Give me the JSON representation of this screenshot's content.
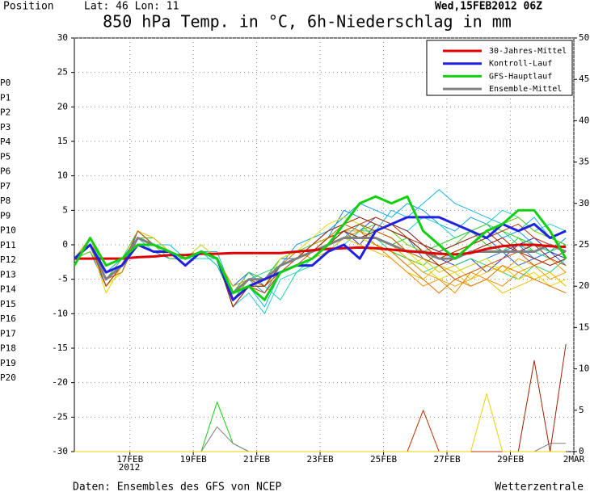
{
  "chart_data": {
    "type": "line",
    "title": "850 hPa Temp. in °C, 6h-Niederschlag in mm",
    "position_label": "Position",
    "location": "Lat: 46 Lon: 11",
    "run": "Wed,15FEB2012 06Z",
    "year_label": "2012",
    "source": "Daten: Ensembles des GFS von NCEP",
    "brand": "Wetterzentrale",
    "x": [
      0.25,
      0.75,
      1.25,
      1.75,
      2.25,
      2.75,
      3.25,
      3.75,
      4.25,
      4.75,
      5.25,
      5.75,
      6.25,
      6.75,
      7.25,
      7.75,
      8.25,
      8.75,
      9.25,
      9.75,
      10.25,
      10.75,
      11.25,
      11.75,
      12.25,
      12.75,
      13.25,
      13.75,
      14.25,
      14.75,
      15.25,
      15.75
    ],
    "xlim": [
      0.25,
      16
    ],
    "xticks": [
      {
        "value": 2,
        "label": "17FEB"
      },
      {
        "value": 4,
        "label": "19FEB"
      },
      {
        "value": 6,
        "label": "21FEB"
      },
      {
        "value": 8,
        "label": "23FEB"
      },
      {
        "value": 10,
        "label": "25FEB"
      },
      {
        "value": 12,
        "label": "27FEB"
      },
      {
        "value": 14,
        "label": "29FEB"
      },
      {
        "value": 16,
        "label": "2MAR"
      }
    ],
    "ylim": [
      -30,
      30
    ],
    "yticks": [
      -30,
      -25,
      -20,
      -15,
      -10,
      -5,
      0,
      5,
      10,
      15,
      20,
      25,
      30
    ],
    "y2lim": [
      0,
      50
    ],
    "y2ticks": [
      0,
      5,
      10,
      15,
      20,
      25,
      30,
      35,
      40,
      45,
      50
    ],
    "grid": true,
    "legend": "upper right",
    "members": [
      {
        "name": "P0",
        "color": "#3030d0",
        "values": [
          -2,
          0,
          -6,
          -3,
          1,
          0,
          -1,
          -2,
          -1,
          -2,
          -8,
          -6,
          -6,
          -3,
          -1,
          -1,
          1,
          2,
          0,
          3,
          2,
          1,
          -1,
          -2,
          -3,
          -2,
          -4,
          -2,
          0,
          1,
          -1,
          -2
        ]
      },
      {
        "name": "P1",
        "color": "#2060e0",
        "values": [
          -2,
          0,
          -5,
          -4,
          2,
          0,
          -1,
          -3,
          -1,
          -2,
          -6,
          -4,
          -5,
          -2,
          -2,
          0,
          2,
          3,
          2,
          4,
          3,
          2,
          0,
          -1,
          -2,
          0,
          1,
          -1,
          -3,
          -2,
          -1,
          -3
        ]
      },
      {
        "name": "P2",
        "color": "#2080e0",
        "values": [
          -2,
          -1,
          -6,
          -3,
          0,
          -1,
          -2,
          -2,
          -1,
          -3,
          -7,
          -4,
          -6,
          -3,
          -2,
          -1,
          1,
          5,
          4,
          3,
          2,
          1,
          -2,
          -3,
          -4,
          -3,
          -2,
          -1,
          0,
          -2,
          -3,
          -2
        ]
      },
      {
        "name": "P3",
        "color": "#10a0e0",
        "values": [
          -2,
          0,
          -4,
          -2,
          1,
          1,
          -1,
          -2,
          0,
          -2,
          -6,
          -5,
          -7,
          -3,
          0,
          1,
          2,
          4,
          6,
          5,
          4,
          6,
          5,
          3,
          2,
          4,
          3,
          1,
          2,
          0,
          -1,
          1
        ]
      },
      {
        "name": "P4",
        "color": "#10b8e0",
        "values": [
          -2,
          1,
          -5,
          -3,
          2,
          0,
          0,
          -2,
          -1,
          -1,
          -7,
          -6,
          -9,
          -4,
          -3,
          -2,
          -1,
          1,
          3,
          2,
          5,
          4,
          6,
          8,
          6,
          5,
          4,
          3,
          2,
          4,
          1,
          0
        ]
      },
      {
        "name": "P5",
        "color": "#20d0d0",
        "values": [
          -2,
          0,
          -5,
          -4,
          1,
          -1,
          -1,
          -2,
          -2,
          -2,
          -9,
          -7,
          -10,
          -5,
          -4,
          -2,
          0,
          2,
          1,
          2,
          3,
          2,
          4,
          3,
          1,
          2,
          3,
          5,
          4,
          2,
          3,
          2
        ]
      },
      {
        "name": "P6",
        "color": "#20d0a0",
        "values": [
          -2,
          0,
          -6,
          -3,
          0,
          0,
          -1,
          -3,
          -1,
          -3,
          -8,
          -5,
          -6,
          -8,
          -4,
          -3,
          -1,
          0,
          2,
          1,
          -1,
          -2,
          -4,
          -3,
          -2,
          0,
          1,
          2,
          0,
          -1,
          -2,
          -3
        ]
      },
      {
        "name": "P7",
        "color": "#20d070",
        "values": [
          -2,
          1,
          -4,
          -3,
          2,
          0,
          -1,
          -2,
          -1,
          -2,
          -6,
          -5,
          -4,
          -3,
          -2,
          0,
          1,
          3,
          2,
          2,
          1,
          -1,
          -2,
          -4,
          -3,
          -2,
          -3,
          -4,
          -5,
          -3,
          -4,
          -2
        ]
      },
      {
        "name": "P8",
        "color": "#30d030",
        "values": [
          -2,
          0,
          -5,
          -3,
          1,
          1,
          -1,
          -2,
          -1,
          -2,
          -7,
          -4,
          -5,
          -2,
          -1,
          0,
          1,
          2,
          3,
          1,
          0,
          1,
          -1,
          0,
          1,
          2,
          0,
          -1,
          1,
          0,
          -1,
          0
        ]
      },
      {
        "name": "P9",
        "color": "#40d020",
        "values": [
          -2,
          0,
          -5,
          -2,
          2,
          0,
          -2,
          -2,
          -1,
          -2,
          -7,
          -6,
          -6,
          -3,
          -2,
          -1,
          0,
          2,
          1,
          0,
          -1,
          -2,
          -3,
          -1,
          0,
          2,
          3,
          2,
          1,
          -1,
          0,
          -1
        ]
      },
      {
        "name": "P10",
        "color": "#60d000",
        "values": [
          -2,
          -1,
          -5,
          -3,
          1,
          0,
          -1,
          -2,
          -1,
          -2,
          -8,
          -5,
          -5,
          -3,
          -2,
          -1,
          0,
          1,
          2,
          3,
          2,
          0,
          -1,
          -2,
          -1,
          0,
          2,
          3,
          4,
          2,
          1,
          0
        ]
      },
      {
        "name": "P11",
        "color": "#e0e000",
        "values": [
          -2,
          0,
          -6,
          -4,
          1,
          0,
          -1,
          -2,
          0,
          -2,
          -7,
          -5,
          -6,
          -2,
          -1,
          1,
          3,
          4,
          3,
          2,
          1,
          -1,
          -3,
          -5,
          -4,
          -3,
          -2,
          -4,
          -3,
          -5,
          -4,
          -6
        ]
      },
      {
        "name": "P12",
        "color": "#f0d000",
        "values": [
          -2,
          0,
          -7,
          -3,
          1,
          0,
          -1,
          -2,
          -1,
          -2,
          -8,
          -6,
          -6,
          -3,
          -2,
          -1,
          0,
          2,
          1,
          0,
          -1,
          -3,
          -2,
          -4,
          -3,
          -5,
          -4,
          -3,
          -5,
          -4,
          -6,
          -5
        ]
      },
      {
        "name": "P13",
        "color": "#f0c000",
        "values": [
          -2,
          0,
          -5,
          -3,
          2,
          1,
          -1,
          -2,
          -1,
          -2,
          -7,
          -5,
          -6,
          -4,
          -3,
          -2,
          -1,
          1,
          0,
          -1,
          -2,
          -4,
          -5,
          -3,
          -4,
          -6,
          -5,
          -7,
          -6,
          -5,
          -4,
          -6
        ]
      },
      {
        "name": "P14",
        "color": "#f0a000",
        "values": [
          -2,
          1,
          -5,
          -3,
          1,
          0,
          -1,
          -2,
          -1,
          -2,
          -6,
          -5,
          -5,
          -3,
          -2,
          0,
          1,
          2,
          2,
          1,
          0,
          -2,
          -4,
          -5,
          -6,
          -5,
          -3,
          -4,
          -2,
          -3,
          -5,
          -4
        ]
      },
      {
        "name": "P15",
        "color": "#f09000",
        "values": [
          -2,
          0,
          -6,
          -3,
          1,
          0,
          -1,
          -2,
          -1,
          -2,
          -7,
          -5,
          -6,
          -3,
          -1,
          -2,
          0,
          1,
          2,
          0,
          -2,
          -4,
          -6,
          -5,
          -7,
          -4,
          -5,
          -6,
          -4,
          -3,
          -2,
          -4
        ]
      },
      {
        "name": "P16",
        "color": "#e07000",
        "values": [
          -2,
          0,
          -5,
          -4,
          1,
          0,
          -1,
          -3,
          -1,
          -2,
          -8,
          -6,
          -5,
          -3,
          -2,
          -1,
          1,
          3,
          2,
          0,
          -1,
          -3,
          -5,
          -7,
          -5,
          -6,
          -5,
          -3,
          -4,
          -5,
          -6,
          -7
        ]
      },
      {
        "name": "P17",
        "color": "#d05000",
        "values": [
          -2,
          0,
          -5,
          -3,
          2,
          0,
          -1,
          -2,
          -1,
          -2,
          -7,
          -5,
          -6,
          -4,
          -3,
          -1,
          0,
          2,
          3,
          2,
          1,
          -1,
          -2,
          -3,
          -5,
          -4,
          -3,
          -2,
          -1,
          -3,
          -2,
          -3
        ]
      },
      {
        "name": "P18",
        "color": "#c03000",
        "values": [
          -2,
          0,
          -6,
          -3,
          1,
          0,
          -1,
          -2,
          -1,
          -2,
          -9,
          -6,
          -7,
          -4,
          -2,
          -1,
          1,
          2,
          3,
          4,
          3,
          1,
          0,
          -2,
          -1,
          0,
          1,
          2,
          3,
          1,
          0,
          -1
        ]
      },
      {
        "name": "P19",
        "color": "#a02000",
        "values": [
          -2,
          0,
          -5,
          -3,
          1,
          0,
          -1,
          -2,
          -1,
          -2,
          -9,
          -6,
          -6,
          -3,
          -2,
          0,
          2,
          3,
          4,
          3,
          2,
          1,
          -1,
          -3,
          -2,
          -1,
          0,
          1,
          -1,
          -2,
          -3,
          -2
        ]
      },
      {
        "name": "P20",
        "color": "#902020",
        "values": [
          -2,
          0,
          -5,
          -3,
          1,
          0,
          -1,
          -2,
          -1,
          -2,
          -7,
          -5,
          -5,
          -3,
          -2,
          -1,
          0,
          2,
          1,
          2,
          3,
          2,
          0,
          -1,
          0,
          1,
          2,
          0,
          -1,
          0,
          -2,
          -1
        ]
      }
    ],
    "series": [
      {
        "name": "30-Jahres-Mittel",
        "color": "#e00000",
        "values": [
          -2,
          -2,
          -2,
          -2,
          -1.8,
          -1.7,
          -1.5,
          -1.5,
          -1.3,
          -1.3,
          -1.2,
          -1.2,
          -1.2,
          -1.2,
          -1,
          -0.8,
          -0.6,
          -0.5,
          -0.4,
          -0.5,
          -0.7,
          -0.9,
          -1.1,
          -1.3,
          -1.4,
          -1.2,
          -0.6,
          -0.2,
          0,
          0,
          -0.2,
          -0.3
        ]
      },
      {
        "name": "Kontroll-Lauf",
        "color": "#2020e0",
        "values": [
          -2,
          0,
          -4,
          -3,
          0,
          -1,
          -1,
          -3,
          -1,
          -2,
          -8,
          -6,
          -5,
          -4,
          -3,
          -3,
          -1,
          0,
          -2,
          2,
          3,
          4,
          4,
          4,
          3,
          2,
          1,
          3,
          2,
          3,
          1,
          2
        ]
      },
      {
        "name": "GFS-Hauptlauf",
        "color": "#10d010",
        "values": [
          -3,
          1,
          -3,
          -2,
          0,
          0,
          -1,
          -2,
          -1,
          -2,
          -7,
          -6,
          -8,
          -4,
          -3,
          -2,
          0,
          3,
          6,
          7,
          6,
          7,
          2,
          0,
          -2,
          0,
          2,
          3,
          5,
          5,
          2,
          -2
        ]
      },
      {
        "name": "Ensemble-Mittel",
        "color": "#808080",
        "values": [
          -2,
          0,
          -5,
          -3,
          1,
          0,
          -1,
          -2,
          -1,
          -2,
          -7,
          -5,
          -5,
          -3,
          -2,
          -1,
          0,
          1,
          1,
          1,
          0,
          -1,
          -1,
          -2,
          -2,
          -1,
          -1,
          -1,
          -1,
          -1,
          0,
          -1
        ]
      }
    ],
    "precipitation": [
      {
        "color": "#10d010",
        "axis": "y2",
        "values": [
          0,
          0,
          0,
          0,
          0,
          0,
          0,
          0,
          0,
          6,
          1,
          0,
          0,
          0,
          0,
          0,
          0,
          0,
          0,
          0,
          0,
          0,
          0,
          0,
          0,
          0,
          0,
          0,
          0,
          0,
          0,
          0
        ]
      },
      {
        "color": "#808080",
        "axis": "y2",
        "values": [
          0,
          0,
          0,
          0,
          0,
          0,
          0,
          0,
          0,
          3,
          1,
          0,
          0,
          0,
          0,
          0,
          0,
          0,
          0,
          0,
          0,
          0,
          0,
          0,
          0,
          0,
          0,
          0,
          0,
          0,
          1,
          1
        ]
      },
      {
        "color": "#a02000",
        "axis": "y2",
        "values": [
          0,
          0,
          0,
          0,
          0,
          0,
          0,
          0,
          0,
          0,
          0,
          0,
          0,
          0,
          0,
          0,
          0,
          0,
          0,
          0,
          0,
          0,
          0,
          0,
          0,
          0,
          0,
          0,
          0,
          11,
          0,
          13
        ]
      },
      {
        "color": "#c03000",
        "axis": "y2",
        "values": [
          0,
          0,
          0,
          0,
          0,
          0,
          0,
          0,
          0,
          0,
          0,
          0,
          0,
          0,
          0,
          0,
          0,
          0,
          0,
          0,
          0,
          0,
          5,
          0,
          0,
          0,
          0,
          0,
          0,
          0,
          0,
          0
        ]
      },
      {
        "color": "#f0d000",
        "axis": "y2",
        "values": [
          0,
          0,
          0,
          0,
          0,
          0,
          0,
          0,
          0,
          0,
          0,
          0,
          0,
          0,
          0,
          0,
          0,
          0,
          0,
          0,
          0,
          0,
          0,
          0,
          0,
          0,
          7,
          0,
          0,
          0,
          0,
          0
        ]
      }
    ]
  }
}
